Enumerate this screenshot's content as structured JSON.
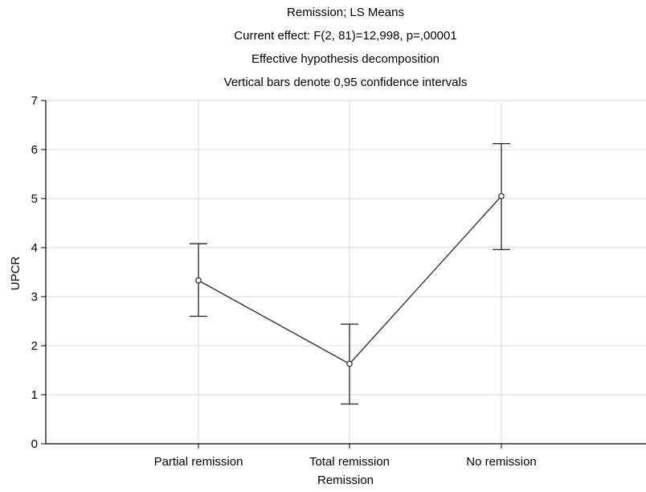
{
  "chart_data": {
    "type": "line",
    "title_lines": [
      "Remission; LS Means",
      "Current effect: F(2, 81)=12,998, p=,00001",
      "Effective hypothesis decomposition",
      "Vertical bars denote 0,95 confidence intervals"
    ],
    "xlabel": "Remission",
    "ylabel": "UPCR",
    "categories": [
      "Partial remission",
      "Total remission",
      "No remission"
    ],
    "series": [
      {
        "values": [
          3.33,
          1.63,
          5.05
        ],
        "ci_lower": [
          2.6,
          0.81,
          3.96
        ],
        "ci_upper": [
          4.08,
          2.44,
          6.12
        ]
      }
    ],
    "ylim": [
      0,
      7
    ],
    "yticks": [
      "0",
      "1",
      "2",
      "3",
      "4",
      "5",
      "6",
      "7"
    ],
    "grid": true,
    "colors": {
      "line": "#333333",
      "grid": "#d9d9d9",
      "axis": "#000000"
    }
  }
}
